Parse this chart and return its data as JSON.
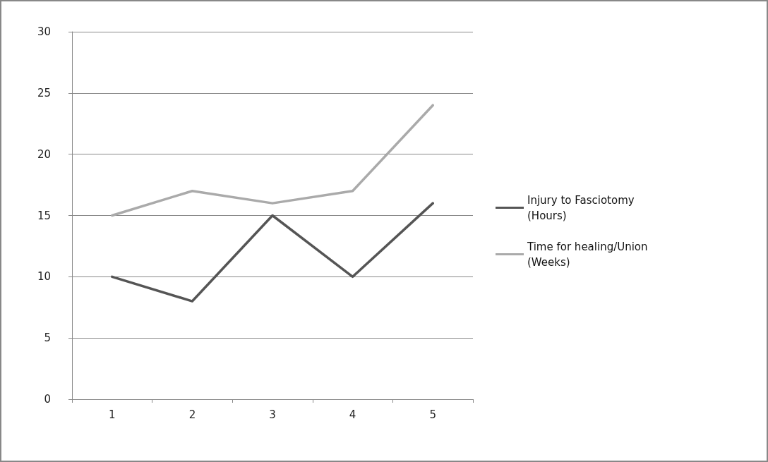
{
  "chart_data": {
    "type": "line",
    "categories": [
      "1",
      "2",
      "3",
      "4",
      "5"
    ],
    "series": [
      {
        "name": "Injury to Fasciotomy\n(Hours)",
        "color": "#555555",
        "values": [
          10,
          8,
          15,
          10,
          16
        ]
      },
      {
        "name": "Time for healing/Union\n(Weeks)",
        "color": "#aaaaaa",
        "values": [
          15,
          17,
          16,
          17,
          24
        ]
      }
    ],
    "ylim": [
      0,
      30
    ],
    "yticks": [
      0,
      5,
      10,
      15,
      20,
      25,
      30
    ],
    "grid": "y",
    "legend": "right",
    "marker": "none",
    "line_style": "solid"
  }
}
